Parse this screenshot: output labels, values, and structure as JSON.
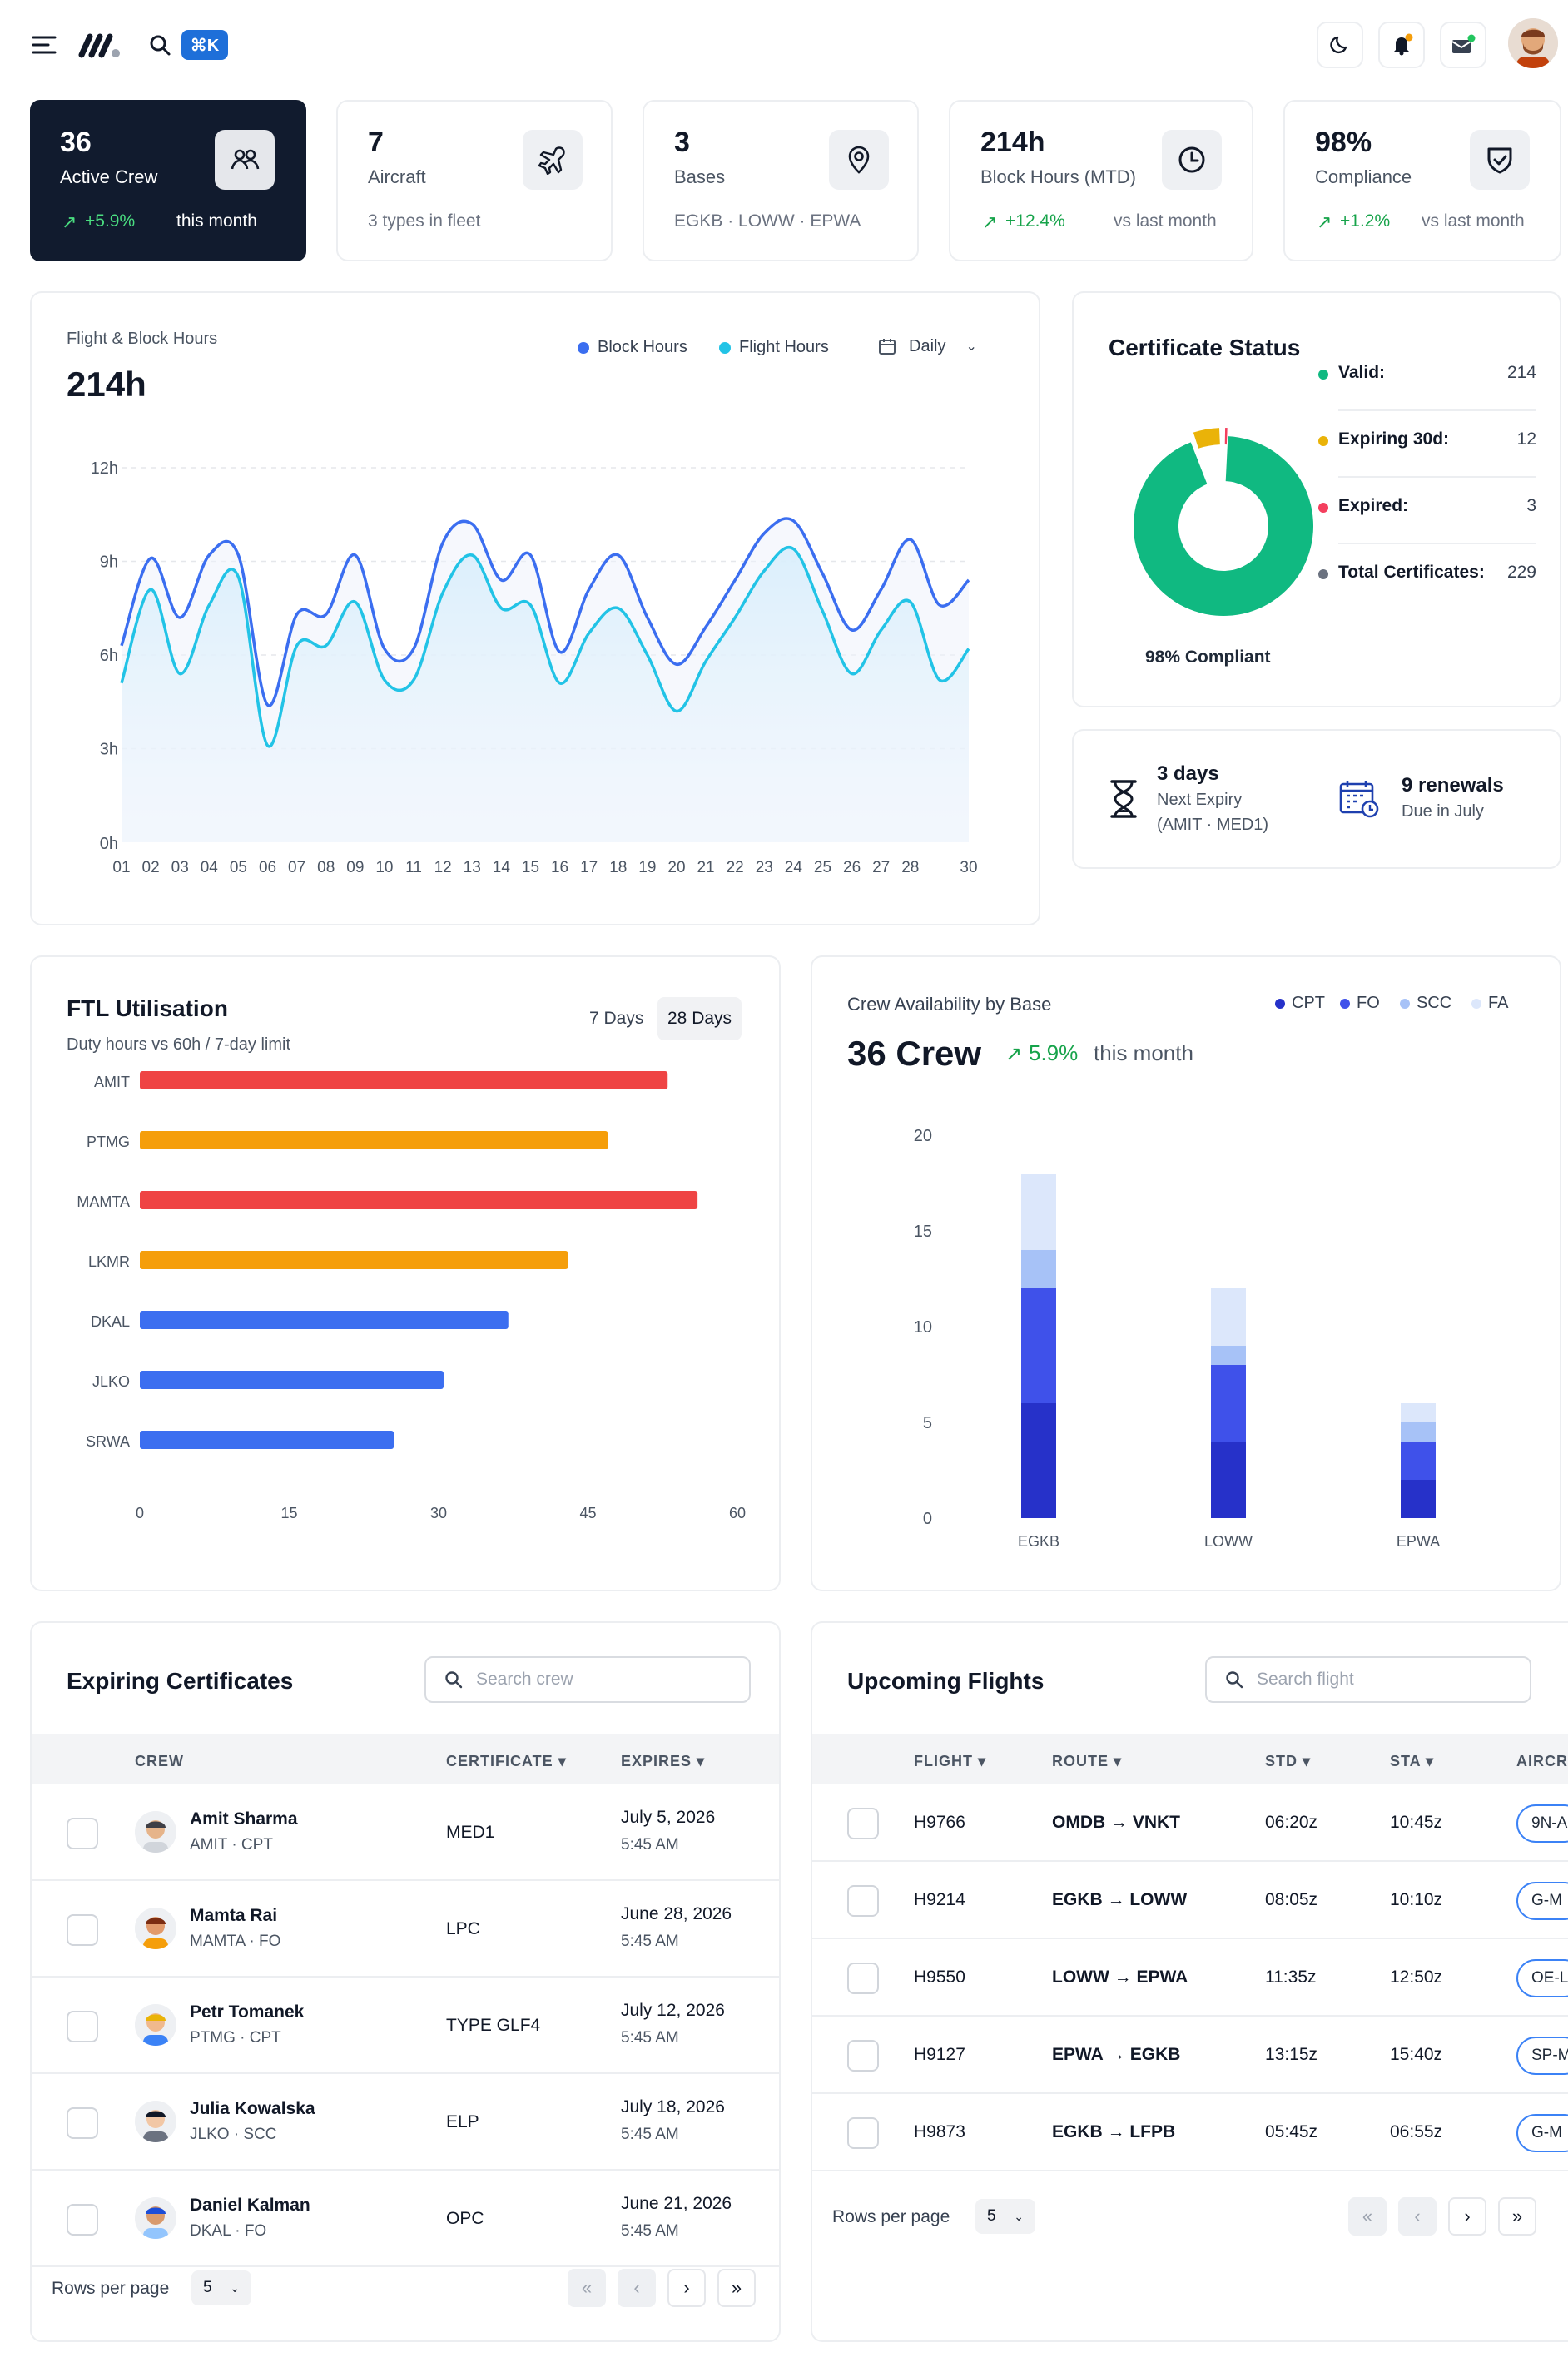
{
  "topbar": {
    "kbd": "⌘K"
  },
  "stats": [
    {
      "value": "36",
      "label": "Active Crew",
      "delta": "+5.9%",
      "sub": "this month"
    },
    {
      "value": "7",
      "label": "Aircraft",
      "sub": "3 types in fleet"
    },
    {
      "value": "3",
      "label": "Bases",
      "sub": "EGKB · LOWW · EPWA"
    },
    {
      "value": "214h",
      "label": "Block Hours (MTD)",
      "delta": "+12.4%",
      "sub": "vs last month"
    },
    {
      "value": "98%",
      "label": "Compliance",
      "delta": "+1.2%",
      "sub": "vs last month"
    }
  ],
  "hours_chart": {
    "caption": "Flight & Block Hours",
    "total": "214h",
    "legend": [
      "Block Hours",
      "Flight Hours"
    ],
    "period": "Daily"
  },
  "chart_data": [
    {
      "type": "line",
      "title": "Flight & Block Hours",
      "colors": {
        "Block Hours": "#3b6ef0",
        "Flight Hours": "#22c3e6"
      },
      "x_labels": [
        "01",
        "02",
        "03",
        "04",
        "05",
        "06",
        "07",
        "08",
        "09",
        "10",
        "11",
        "12",
        "13",
        "14",
        "15",
        "16",
        "17",
        "18",
        "19",
        "20",
        "21",
        "22",
        "23",
        "24",
        "25",
        "26",
        "27",
        "28",
        "30"
      ],
      "y_ticks": [
        "0h",
        "3h",
        "6h",
        "9h",
        "12h"
      ],
      "ylim": [
        0,
        12
      ],
      "x": [
        1,
        2,
        3,
        4,
        5,
        6,
        7,
        8,
        9,
        10,
        11,
        12,
        13,
        14,
        15,
        16,
        17,
        18,
        19,
        20,
        21,
        22,
        23,
        24,
        25,
        26,
        27,
        28,
        29,
        30
      ],
      "series": [
        {
          "name": "Block Hours",
          "values": [
            6.3,
            9.1,
            7.2,
            9.2,
            9.2,
            4.4,
            7.3,
            7.3,
            9.2,
            6.2,
            6.2,
            9.6,
            10.2,
            8.4,
            9.2,
            6.1,
            8.1,
            9.2,
            7.2,
            5.7,
            6.9,
            8.4,
            9.9,
            10.3,
            8.6,
            6.8,
            8.1,
            9.7,
            7.6,
            8.4
          ]
        },
        {
          "name": "Flight Hours",
          "values": [
            5.1,
            8.1,
            5.4,
            7.6,
            8.5,
            3.1,
            6.3,
            6.3,
            7.7,
            5.2,
            5.2,
            8.0,
            9.2,
            7.5,
            7.6,
            5.1,
            6.7,
            7.5,
            6.0,
            4.2,
            5.8,
            7.2,
            8.7,
            9.4,
            7.4,
            5.4,
            6.8,
            7.7,
            5.2,
            6.2
          ]
        }
      ]
    },
    {
      "type": "pie",
      "title": "Certificate Status",
      "categories": [
        "Valid",
        "Expiring 30d",
        "Expired"
      ],
      "values": [
        214,
        12,
        3
      ],
      "colors": [
        "#10b981",
        "#eab308",
        "#f43f5e"
      ]
    },
    {
      "type": "bar",
      "title": "FTL Utilisation",
      "orientation": "horizontal",
      "categories": [
        "AMIT",
        "PTMG",
        "MAMTA",
        "LKMR",
        "DKAL",
        "JLKO",
        "SRWA"
      ],
      "values": [
        53,
        47,
        56,
        43,
        37,
        30.5,
        25.5
      ],
      "colors": [
        "#ef4444",
        "#f59e0b",
        "#ef4444",
        "#f59e0b",
        "#3b6ef0",
        "#3b6ef0",
        "#3b6ef0"
      ],
      "x_ticks": [
        "0",
        "15",
        "30",
        "45",
        "60"
      ],
      "xlim": [
        0,
        60
      ]
    },
    {
      "type": "bar",
      "stacked": true,
      "title": "Crew Availability by Base",
      "categories": [
        "EGKB",
        "LOWW",
        "EPWA"
      ],
      "series": [
        {
          "name": "CPT",
          "values": [
            6,
            4,
            2
          ],
          "color": "#2631c9"
        },
        {
          "name": "FO",
          "values": [
            6,
            4,
            2
          ],
          "color": "#3f51ea"
        },
        {
          "name": "SCC",
          "values": [
            2,
            1,
            1
          ],
          "color": "#a7c2f7"
        },
        {
          "name": "FA",
          "values": [
            4,
            3,
            1
          ],
          "color": "#dce7fb"
        }
      ],
      "y_ticks": [
        "0",
        "5",
        "10",
        "15",
        "20"
      ],
      "ylim": [
        0,
        20
      ]
    }
  ],
  "certificate": {
    "title": "Certificate Status",
    "items": [
      {
        "label": "Valid:",
        "value": "214",
        "color": "#10b981"
      },
      {
        "label": "Expiring 30d:",
        "value": "12",
        "color": "#eab308"
      },
      {
        "label": "Expired:",
        "value": "3",
        "color": "#f43f5e"
      },
      {
        "label": "Total Certificates:",
        "value": "229",
        "color": "#6b7280"
      }
    ],
    "compliant": "98% Compliant"
  },
  "expiry": {
    "next_value": "3 days",
    "next_label": "Next Expiry",
    "next_detail": "(AMIT · MED1)",
    "renew_value": "9 renewals",
    "renew_label": "Due in July"
  },
  "ftl": {
    "title": "FTL Utilisation",
    "subtitle": "Duty hours vs 60h / 7-day limit",
    "tabs": [
      "7 Days",
      "28 Days"
    ]
  },
  "crew_avail": {
    "caption": "Crew Availability by Base",
    "total": "36 Crew",
    "delta": "5.9%",
    "delta_sub": "this month",
    "legend": [
      "CPT",
      "FO",
      "SCC",
      "FA"
    ]
  },
  "certs_table": {
    "title": "Expiring Certificates",
    "search_placeholder": "Search crew",
    "headers": [
      "CREW",
      "CERTIFICATE",
      "EXPIRES"
    ],
    "rows": [
      {
        "name": "Amit Sharma",
        "sub": "AMIT · CPT",
        "cert": "MED1",
        "date": "July 5, 2026",
        "time": "5:45 AM"
      },
      {
        "name": "Mamta Rai",
        "sub": "MAMTA · FO",
        "cert": "LPC",
        "date": "June 28, 2026",
        "time": "5:45 AM"
      },
      {
        "name": "Petr Tomanek",
        "sub": "PTMG · CPT",
        "cert": "TYPE GLF4",
        "date": "July 12, 2026",
        "time": "5:45 AM"
      },
      {
        "name": "Julia Kowalska",
        "sub": "JLKO · SCC",
        "cert": "ELP",
        "date": "July 18, 2026",
        "time": "5:45 AM"
      },
      {
        "name": "Daniel Kalman",
        "sub": "DKAL · FO",
        "cert": "OPC",
        "date": "June 21, 2026",
        "time": "5:45 AM"
      }
    ],
    "rows_per_page_label": "Rows per page",
    "rows_per_page": "5"
  },
  "flights_table": {
    "title": "Upcoming Flights",
    "search_placeholder": "Search flight",
    "headers": [
      "FLIGHT",
      "ROUTE",
      "STD",
      "STA",
      "AIRCR"
    ],
    "rows": [
      {
        "flight": "H9766",
        "route": "OMDB → VNKT",
        "std": "06:20z",
        "sta": "10:45z",
        "ac": "9N-A"
      },
      {
        "flight": "H9214",
        "route": "EGKB → LOWW",
        "std": "08:05z",
        "sta": "10:10z",
        "ac": "G-M"
      },
      {
        "flight": "H9550",
        "route": "LOWW → EPWA",
        "std": "11:35z",
        "sta": "12:50z",
        "ac": "OE-L"
      },
      {
        "flight": "H9127",
        "route": "EPWA → EGKB",
        "std": "13:15z",
        "sta": "15:40z",
        "ac": "SP-M"
      },
      {
        "flight": "H9873",
        "route": "EGKB → LFPB",
        "std": "05:45z",
        "sta": "06:55z",
        "ac": "G-M"
      }
    ],
    "rows_per_page_label": "Rows per page",
    "rows_per_page": "5"
  }
}
